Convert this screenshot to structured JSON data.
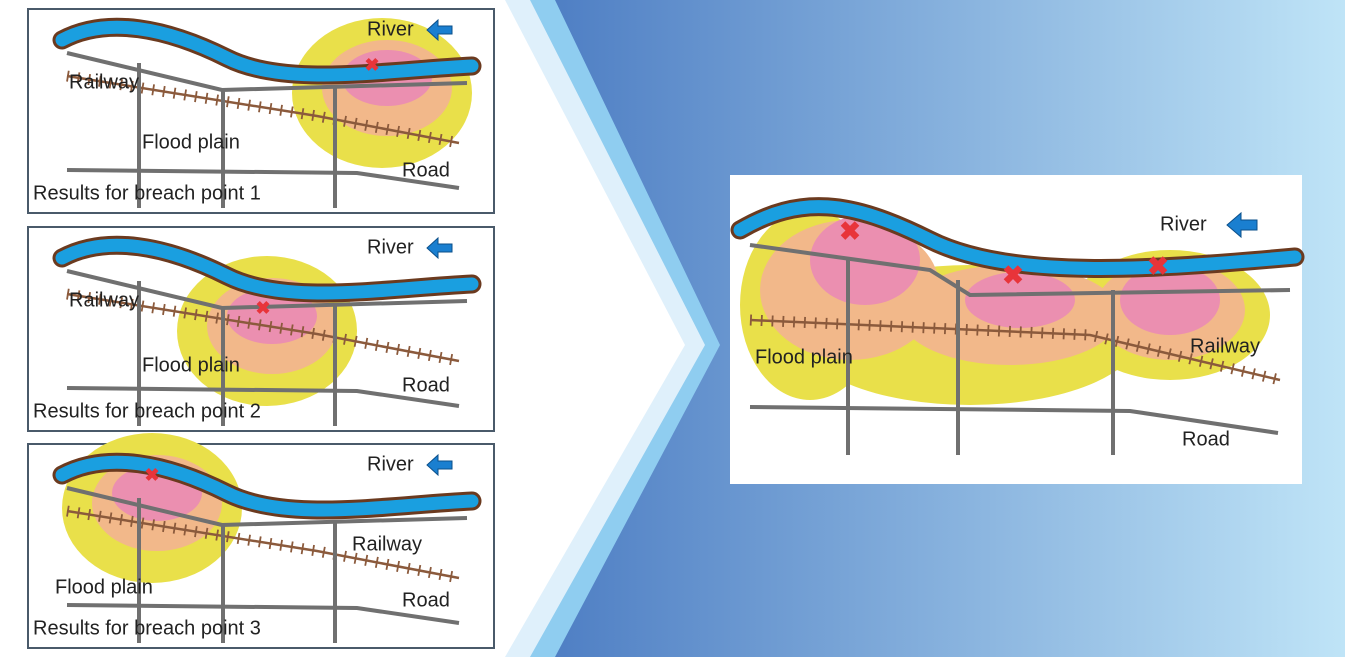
{
  "panels": [
    {
      "labels": {
        "river": "River",
        "railway": "Railway",
        "flood_plain": "Flood plain",
        "road": "Road"
      },
      "caption": "Results for breach point 1"
    },
    {
      "labels": {
        "river": "River",
        "railway": "Railway",
        "flood_plain": "Flood plain",
        "road": "Road"
      },
      "caption": "Results for breach point 2"
    },
    {
      "labels": {
        "river": "River",
        "railway": "Railway",
        "flood_plain": "Flood plain",
        "road": "Road"
      },
      "caption": "Results for breach point 3"
    }
  ],
  "combined": {
    "river": "River",
    "flood_plain": "Flood plain",
    "railway": "Railway",
    "road": "Road"
  }
}
